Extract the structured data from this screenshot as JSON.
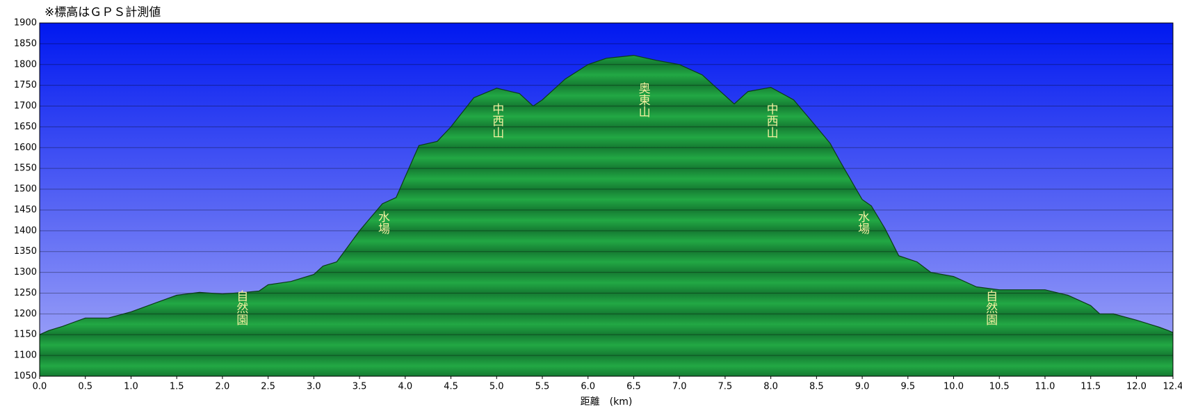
{
  "chart_data": {
    "type": "area",
    "title": "※標高はＧＰＳ計測値",
    "x_label": "距離　(km)",
    "x": [
      0,
      0.1,
      0.25,
      0.5,
      0.75,
      1.0,
      1.25,
      1.5,
      1.75,
      2.0,
      2.25,
      2.4,
      2.5,
      2.75,
      3.0,
      3.1,
      3.25,
      3.5,
      3.75,
      3.9,
      4.0,
      4.15,
      4.35,
      4.5,
      4.75,
      5.0,
      5.25,
      5.4,
      5.5,
      5.75,
      6.0,
      6.2,
      6.5,
      6.75,
      7.0,
      7.25,
      7.5,
      7.6,
      7.75,
      8.0,
      8.25,
      8.5,
      8.65,
      8.75,
      9.0,
      9.1,
      9.25,
      9.4,
      9.6,
      9.75,
      10.0,
      10.25,
      10.5,
      11.0,
      11.25,
      11.5,
      11.6,
      11.75,
      12.0,
      12.25,
      12.35,
      12.4
    ],
    "values": [
      1150,
      1160,
      1170,
      1190,
      1190,
      1205,
      1225,
      1245,
      1252,
      1248,
      1252,
      1255,
      1270,
      1278,
      1295,
      1315,
      1325,
      1400,
      1465,
      1480,
      1530,
      1605,
      1615,
      1650,
      1720,
      1743,
      1730,
      1700,
      1715,
      1765,
      1800,
      1815,
      1822,
      1810,
      1800,
      1775,
      1725,
      1705,
      1735,
      1745,
      1715,
      1650,
      1610,
      1570,
      1475,
      1460,
      1405,
      1340,
      1325,
      1300,
      1290,
      1265,
      1258,
      1258,
      1245,
      1220,
      1200,
      1200,
      1185,
      1168,
      1160,
      1155
    ],
    "color": "#22a844",
    "xlim": [
      0,
      12.4
    ],
    "xticks": [
      {
        "value": 0,
        "label": "0.0"
      },
      0.5,
      {
        "value": 1,
        "label": "1.0"
      },
      1.5,
      {
        "value": 2,
        "label": "2.0"
      },
      2.5,
      {
        "value": 3,
        "label": "3.0"
      },
      3.5,
      {
        "value": 4,
        "label": "4.0"
      },
      4.5,
      {
        "value": 5,
        "label": "5.0"
      },
      5.5,
      {
        "value": 6,
        "label": "6.0"
      },
      6.5,
      {
        "value": 7,
        "label": "7.0"
      },
      7.5,
      {
        "value": 8,
        "label": "8.0"
      },
      8.5,
      {
        "value": 9,
        "label": "9.0"
      },
      9.5,
      {
        "value": 10,
        "label": "10.0"
      },
      10.5,
      {
        "value": 11,
        "label": "11.0"
      },
      11.5,
      {
        "value": 12,
        "label": "12.0"
      },
      12.4
    ],
    "ylim": [
      1050,
      1900
    ],
    "yticks": [
      1050,
      1100,
      1150,
      1200,
      1250,
      1300,
      1350,
      1400,
      1450,
      1500,
      1550,
      1600,
      1650,
      1700,
      1750,
      1800,
      1850,
      1900
    ],
    "grid": true,
    "annotations": [
      {
        "text": "自然園",
        "x": 2.2,
        "y": 1215
      },
      {
        "text": "水場",
        "x": 3.75,
        "y": 1420
      },
      {
        "text": "中西山",
        "x": 5.0,
        "y": 1665
      },
      {
        "text": "奥東山",
        "x": 6.6,
        "y": 1715
      },
      {
        "text": "中西山",
        "x": 8.0,
        "y": 1665
      },
      {
        "text": "水場",
        "x": 9.0,
        "y": 1420
      },
      {
        "text": "自然園",
        "x": 10.4,
        "y": 1215
      }
    ]
  }
}
